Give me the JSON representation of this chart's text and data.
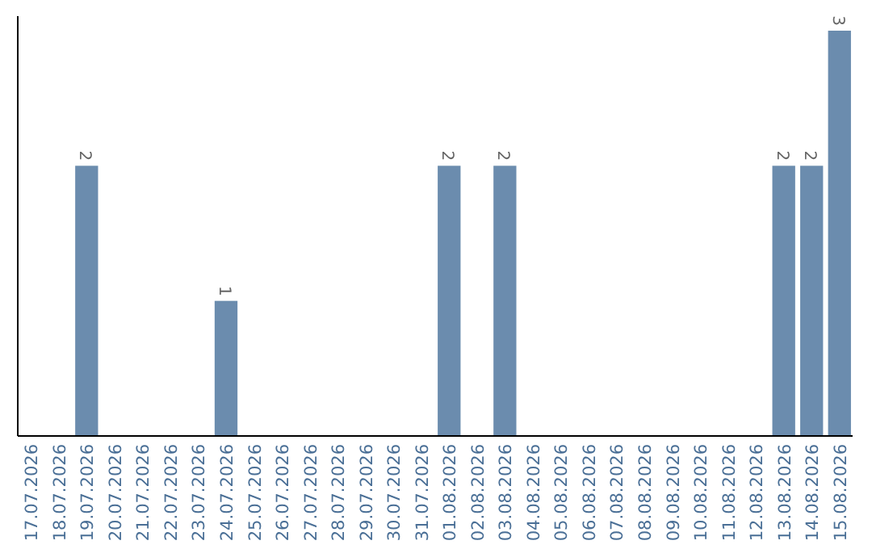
{
  "chart_data": {
    "type": "bar",
    "categories": [
      "17.07.2026",
      "18.07.2026",
      "19.07.2026",
      "20.07.2026",
      "21.07.2026",
      "22.07.2026",
      "23.07.2026",
      "24.07.2026",
      "25.07.2026",
      "26.07.2026",
      "27.07.2026",
      "28.07.2026",
      "29.07.2026",
      "30.07.2026",
      "31.07.2026",
      "01.08.2026",
      "02.08.2026",
      "03.08.2026",
      "04.08.2026",
      "05.08.2026",
      "06.08.2026",
      "07.08.2026",
      "08.08.2026",
      "09.08.2026",
      "10.08.2026",
      "11.08.2026",
      "12.08.2026",
      "13.08.2026",
      "14.08.2026",
      "15.08.2026"
    ],
    "values": [
      0,
      0,
      2,
      0,
      0,
      0,
      0,
      1,
      0,
      0,
      0,
      0,
      0,
      0,
      0,
      2,
      0,
      2,
      0,
      0,
      0,
      0,
      0,
      0,
      0,
      0,
      0,
      2,
      2,
      3
    ],
    "value_labels": [
      null,
      null,
      "2",
      null,
      null,
      null,
      null,
      "1",
      null,
      null,
      null,
      null,
      null,
      null,
      null,
      "2",
      null,
      "2",
      null,
      null,
      null,
      null,
      null,
      null,
      null,
      null,
      null,
      "2",
      "2",
      "3"
    ],
    "color": "#6b8cae"
  }
}
